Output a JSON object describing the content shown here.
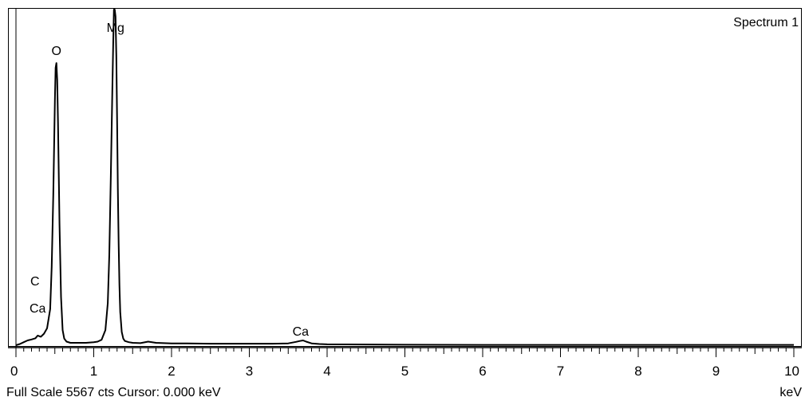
{
  "chart_data": {
    "type": "line",
    "title": "Spectrum 1",
    "xlabel": "keV",
    "ylabel": "",
    "xlim": [
      0,
      10
    ],
    "ylim": [
      0,
      5567
    ],
    "x_ticks": [
      "0",
      "1",
      "2",
      "3",
      "4",
      "5",
      "6",
      "7",
      "8",
      "9",
      "10"
    ],
    "grid": false,
    "legend": "none",
    "series": [
      {
        "x": [
          0.0,
          0.05,
          0.1,
          0.15,
          0.2,
          0.25,
          0.28,
          0.32,
          0.36,
          0.4,
          0.44,
          0.46,
          0.48,
          0.5,
          0.51,
          0.52,
          0.53,
          0.54,
          0.56,
          0.58,
          0.6,
          0.62,
          0.65,
          0.7,
          0.8,
          0.9,
          1.0,
          1.05,
          1.1,
          1.15,
          1.18,
          1.2,
          1.22,
          1.24,
          1.25,
          1.26,
          1.27,
          1.28,
          1.29,
          1.3,
          1.31,
          1.32,
          1.33,
          1.34,
          1.36,
          1.38,
          1.4,
          1.45,
          1.5,
          1.6,
          1.7,
          1.8,
          2.0,
          2.2,
          2.5,
          3.0,
          3.3,
          3.5,
          3.6,
          3.65,
          3.69,
          3.73,
          3.8,
          3.9,
          4.0,
          5.0,
          6.0,
          7.0,
          8.0,
          9.0,
          10.0
        ],
        "values": [
          0,
          20,
          50,
          80,
          95,
          115,
          160,
          140,
          190,
          280,
          600,
          1300,
          2500,
          4050,
          4600,
          4680,
          4400,
          3700,
          2000,
          800,
          250,
          110,
          60,
          40,
          40,
          40,
          50,
          60,
          90,
          250,
          700,
          1500,
          2800,
          4300,
          5000,
          5567,
          5567,
          5450,
          4800,
          3700,
          2600,
          1700,
          1000,
          550,
          220,
          110,
          70,
          50,
          40,
          35,
          60,
          40,
          30,
          30,
          25,
          25,
          25,
          30,
          55,
          70,
          80,
          60,
          30,
          20,
          15,
          8,
          5,
          5,
          5,
          5,
          5
        ]
      }
    ],
    "annotations": [
      {
        "text": "Mg",
        "x": 1.25,
        "y": 5567
      },
      {
        "text": "O",
        "x": 0.52,
        "y": 4680
      },
      {
        "text": "C",
        "x": 0.26,
        "y": 1100
      },
      {
        "text": "Ca",
        "x": 0.31,
        "y": 600
      },
      {
        "text": "Ca",
        "x": 3.66,
        "y": 80
      }
    ]
  },
  "footer": {
    "status": "Full Scale 5567 cts  Cursor: 0.000 keV",
    "unit": "keV"
  },
  "colors": {
    "line": "#000000",
    "background": "#ffffff"
  }
}
